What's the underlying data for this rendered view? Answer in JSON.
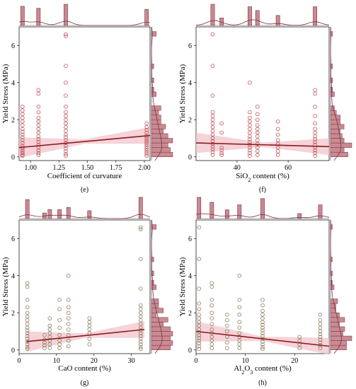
{
  "figure": {
    "panel_labels": [
      "(e)",
      "(f)",
      "(g)",
      "(h)"
    ],
    "colors": {
      "points_red": "#c0505a",
      "points_olive": "#8a7a5e",
      "fit_line": "#8b1a1a",
      "band": "#f2c4cc",
      "hist_fill": "#c98a92",
      "hist_stroke": "#7a3040"
    }
  },
  "chart_data": [
    {
      "type": "scatter",
      "label": "(e)",
      "xlabel": "Coefficient of curvature",
      "ylabel": "Yield Stress (MPa)",
      "xlim": [
        0.9,
        2.05
      ],
      "ylim": [
        -0.2,
        7
      ],
      "xticks": [
        1.0,
        1.25,
        1.5,
        1.75,
        2.0
      ],
      "xtick_labels": [
        "1.00",
        "1.25",
        "1.50",
        "1.75",
        "2.00"
      ],
      "yticks": [
        0,
        2,
        4,
        6
      ],
      "ytick_labels": [
        "0",
        "2",
        "4",
        "6"
      ],
      "point_color": "#c0505a",
      "groups": [
        {
          "x": 0.93,
          "y": [
            0.05,
            0.1,
            0.2,
            0.3,
            0.4,
            0.5,
            0.6,
            0.75,
            0.9,
            1.05,
            1.2,
            1.35,
            1.5,
            1.7,
            1.9,
            2.1,
            2.3,
            2.5,
            2.7
          ]
        },
        {
          "x": 1.07,
          "y": [
            0.1,
            0.2,
            0.35,
            0.5,
            0.65,
            0.8,
            0.95,
            1.1,
            1.3,
            1.5,
            1.7,
            1.9,
            2.1,
            2.4,
            2.7,
            3.4,
            3.6
          ]
        },
        {
          "x": 1.31,
          "y": [
            0.05,
            0.15,
            0.3,
            0.45,
            0.6,
            0.75,
            0.9,
            1.05,
            1.2,
            1.4,
            1.6,
            1.8,
            2.0,
            2.2,
            2.4,
            2.7,
            3.3,
            4.0,
            4.9,
            6.5,
            6.6
          ]
        },
        {
          "x": 2.02,
          "y": [
            0.05,
            0.15,
            0.25,
            0.35,
            0.45,
            0.55,
            0.65,
            0.75,
            0.85,
            0.95,
            1.05,
            1.15,
            1.3,
            1.45,
            1.6,
            1.8
          ]
        }
      ],
      "fit": {
        "x": [
          0.9,
          2.05
        ],
        "y": [
          0.5,
          1.15
        ]
      }
    },
    {
      "type": "scatter",
      "label": "(f)",
      "xlabel": "SiO₂ content (%)",
      "ylabel": "Yield Stress (MPa)",
      "xlim": [
        24,
        76
      ],
      "ylim": [
        -0.2,
        7
      ],
      "xticks": [
        40,
        60
      ],
      "xtick_labels": [
        "40",
        "60"
      ],
      "yticks": [
        0,
        2,
        4,
        6
      ],
      "ytick_labels": [
        "0",
        "2",
        "4",
        "6"
      ],
      "point_color": "#c0505a",
      "groups": [
        {
          "x": 30.5,
          "y": [
            0.1,
            0.25,
            0.4,
            0.55,
            0.7,
            0.85,
            1.0,
            1.2,
            1.4,
            1.6,
            1.8,
            2.0,
            2.2,
            2.4,
            3.3,
            4.9,
            6.6
          ]
        },
        {
          "x": 34.0,
          "y": [
            0.1,
            0.2,
            0.35,
            0.5,
            1.3,
            1.8
          ]
        },
        {
          "x": 45.0,
          "y": [
            0.05,
            0.2,
            0.35,
            0.5,
            0.65,
            0.8,
            0.95,
            1.1,
            1.3,
            1.5,
            1.7,
            1.9,
            2.1,
            2.4,
            4.0
          ]
        },
        {
          "x": 48.0,
          "y": [
            0.1,
            0.3,
            0.5,
            0.7,
            0.9,
            1.1,
            1.3,
            1.5,
            1.7,
            2.0,
            2.3,
            2.7
          ]
        },
        {
          "x": 56.0,
          "y": [
            0.1,
            0.3,
            0.5,
            0.7,
            0.9,
            1.2,
            1.5,
            1.9
          ]
        },
        {
          "x": 70.5,
          "y": [
            0.05,
            0.2,
            0.35,
            0.5,
            0.65,
            0.8,
            0.95,
            1.1,
            1.3,
            1.5,
            1.8,
            2.2,
            2.7,
            3.4,
            3.6
          ]
        }
      ],
      "fit": {
        "x": [
          24,
          76
        ],
        "y": [
          0.75,
          0.55
        ]
      }
    },
    {
      "type": "scatter",
      "label": "(g)",
      "xlabel": "CaO content (%)",
      "ylabel": "Yield Stress (MPa)",
      "xlim": [
        0,
        35
      ],
      "ylim": [
        -0.2,
        7
      ],
      "xticks": [
        0,
        10,
        20,
        30
      ],
      "xtick_labels": [
        "0",
        "10",
        "20",
        "30"
      ],
      "yticks": [
        0,
        2,
        4,
        6
      ],
      "ytick_labels": [
        "0",
        "2",
        "4",
        "6"
      ],
      "point_color": "#8a7a5e",
      "groups": [
        {
          "x": 2.2,
          "y": [
            0.05,
            0.15,
            0.3,
            0.45,
            0.6,
            0.75,
            0.9,
            1.05,
            1.2,
            1.4,
            1.6,
            1.8,
            2.0,
            2.3,
            2.7,
            3.4,
            3.6
          ]
        },
        {
          "x": 6.8,
          "y": [
            0.1,
            0.25,
            0.4,
            0.55,
            0.8
          ]
        },
        {
          "x": 8.2,
          "y": [
            0.1,
            0.3,
            0.5,
            0.7,
            0.9,
            1.1,
            1.3,
            1.7
          ]
        },
        {
          "x": 10.8,
          "y": [
            0.1,
            0.3,
            0.5,
            0.8,
            1.2,
            1.6,
            2.2,
            2.7
          ]
        },
        {
          "x": 13.2,
          "y": [
            0.2,
            0.5,
            0.8,
            1.1,
            1.4,
            1.7,
            2.0,
            2.3,
            2.7,
            4.0
          ]
        },
        {
          "x": 18.8,
          "y": [
            0.3,
            0.6,
            0.9,
            1.1,
            1.3,
            1.5,
            1.7
          ]
        },
        {
          "x": 32.5,
          "y": [
            0.05,
            0.15,
            0.3,
            0.45,
            0.6,
            0.75,
            0.9,
            1.05,
            1.2,
            1.4,
            1.6,
            1.8,
            2.0,
            2.2,
            2.4,
            3.3,
            4.9,
            6.5,
            6.6
          ]
        }
      ],
      "fit": {
        "x": [
          2,
          33.5
        ],
        "y": [
          0.45,
          1.1
        ]
      }
    },
    {
      "type": "scatter",
      "label": "(h)",
      "xlabel": "Al₂O₃ content (%)",
      "ylabel": "Yield Stress (MPa)",
      "xlim": [
        0,
        27
      ],
      "ylim": [
        -0.2,
        7
      ],
      "xticks": [
        0,
        10,
        20
      ],
      "xtick_labels": [
        "0",
        "10",
        "20"
      ],
      "yticks": [
        0,
        2,
        4,
        6
      ],
      "ytick_labels": [
        "0",
        "2",
        "4",
        "6"
      ],
      "point_color": "#8a7a5e",
      "groups": [
        {
          "x": 0.6,
          "y": [
            0.05,
            0.2,
            0.35,
            0.5,
            0.65,
            0.8,
            0.95,
            1.1,
            1.3,
            1.5,
            1.7,
            1.9,
            2.2,
            2.5,
            3.3,
            4.9,
            6.6
          ]
        },
        {
          "x": 3.2,
          "y": [
            0.1,
            0.3,
            0.5,
            0.7,
            0.9,
            1.1,
            1.4,
            1.7,
            2.0,
            2.4,
            2.7,
            3.4,
            3.6
          ]
        },
        {
          "x": 6.3,
          "y": [
            0.1,
            0.4,
            0.7,
            1.0,
            1.3,
            1.6,
            1.9
          ]
        },
        {
          "x": 8.8,
          "y": [
            0.1,
            0.3,
            0.5,
            0.7,
            0.9,
            1.2,
            1.5,
            1.9,
            2.3,
            2.7,
            4.0
          ]
        },
        {
          "x": 13.5,
          "y": [
            0.05,
            0.15,
            0.3,
            0.45,
            0.6,
            0.75,
            0.9,
            1.05,
            1.2,
            1.35,
            1.5,
            1.7,
            1.9,
            2.1,
            2.4,
            2.7
          ]
        },
        {
          "x": 21.0,
          "y": [
            0.1,
            0.3,
            0.5,
            0.7
          ]
        },
        {
          "x": 25.2,
          "y": [
            0.1,
            0.25,
            0.4,
            0.55,
            0.7,
            0.85,
            1.0,
            1.2,
            1.4,
            1.6,
            1.9
          ]
        }
      ],
      "fit": {
        "x": [
          0,
          27
        ],
        "y": [
          1.0,
          0.2
        ]
      }
    }
  ]
}
